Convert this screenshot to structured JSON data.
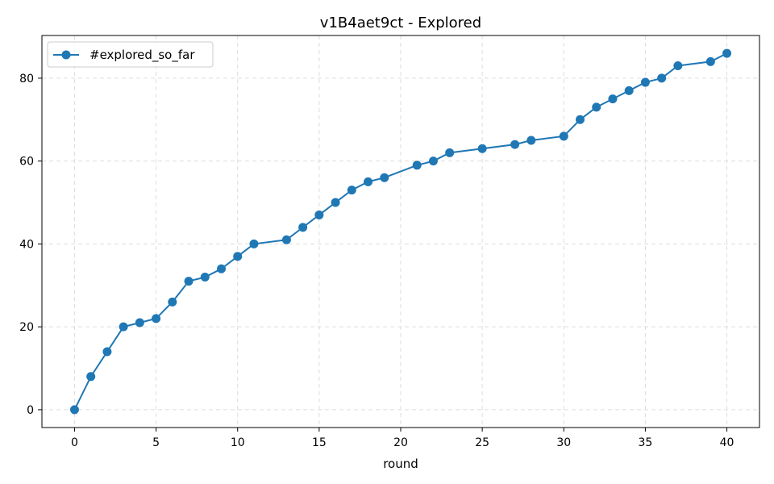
{
  "chart_data": {
    "type": "line",
    "title": "v1B4aet9ct - Explored",
    "xlabel": "round",
    "ylabel": "",
    "xlim": [
      -2,
      42
    ],
    "ylim": [
      -4.3,
      90.3
    ],
    "xticks": [
      0,
      5,
      10,
      15,
      20,
      25,
      30,
      35,
      40
    ],
    "yticks": [
      0,
      20,
      40,
      60,
      80
    ],
    "grid": true,
    "legend_position": "top-left",
    "series": [
      {
        "name": "#explored_so_far",
        "color": "#1f77b4",
        "marker": "circle",
        "x": [
          0,
          1,
          2,
          3,
          4,
          5,
          6,
          7,
          8,
          9,
          10,
          11,
          13,
          14,
          15,
          16,
          17,
          18,
          19,
          21,
          22,
          23,
          25,
          27,
          28,
          30,
          31,
          32,
          33,
          34,
          35,
          36,
          37,
          39,
          40
        ],
        "y": [
          0,
          8,
          14,
          20,
          21,
          22,
          26,
          31,
          32,
          34,
          37,
          40,
          41,
          44,
          47,
          50,
          53,
          55,
          56,
          59,
          60,
          62,
          63,
          64,
          65,
          66,
          70,
          73,
          75,
          77,
          79,
          80,
          83,
          84,
          86
        ]
      }
    ]
  }
}
